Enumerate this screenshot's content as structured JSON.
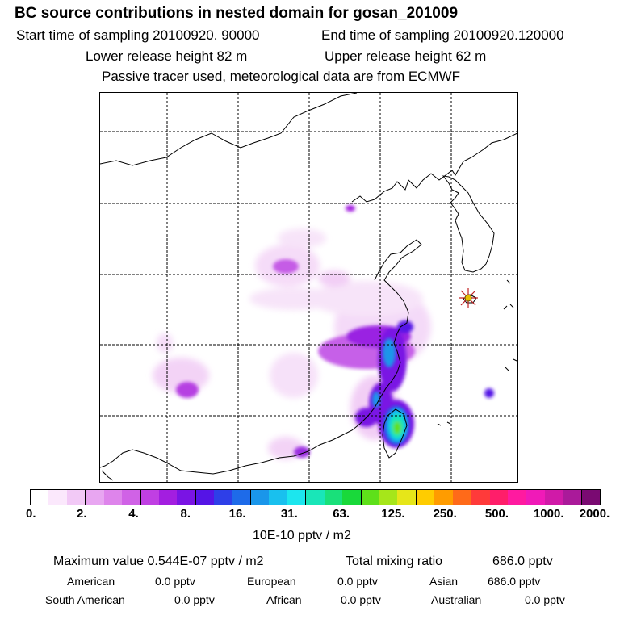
{
  "header": {
    "title": "BC  source contributions in nested domain for gosan_201009",
    "start_sampling": "Start time of sampling 20100920. 90000",
    "end_sampling": "End time of sampling 20100920.120000",
    "lower_release": "Lower release height   82 m",
    "upper_release": "Upper release height   62 m",
    "tracer_note": "Passive tracer used, meteorological data are from ECMWF"
  },
  "map": {
    "receptor_icon": "star-marker-icon"
  },
  "colorbar": {
    "colors": [
      "#ffffff",
      "#fbe8fc",
      "#f2c9f6",
      "#e8a6f1",
      "#de84eb",
      "#d062e6",
      "#c03fe3",
      "#a31ee0",
      "#7a14e4",
      "#5514e6",
      "#2e3fe8",
      "#1e6be9",
      "#1a96ea",
      "#19c0ee",
      "#1ce6ee",
      "#19e6b8",
      "#19e07a",
      "#19d93a",
      "#5ee01a",
      "#a6e61a",
      "#e6e619",
      "#ffcc00",
      "#ff9c00",
      "#ff6a19",
      "#ff3a3a",
      "#ff1e6a",
      "#ff1aa0",
      "#f01ab8",
      "#d01aa8",
      "#aa1a9a",
      "#7a0a72"
    ],
    "labels": [
      "0.",
      "2.",
      "4.",
      "8.",
      "16.",
      "31.",
      "63.",
      "125.",
      "250.",
      "500.",
      "1000.",
      "2000."
    ],
    "unit": "10E-10 pptv / m2"
  },
  "stats": {
    "max_label": "Maximum value  0.544E-07 pptv / m2",
    "total_label": "Total mixing ratio",
    "total_value": "686.0 pptv",
    "american_label": "American",
    "american_value": "0.0 pptv",
    "european_label": "European",
    "european_value": "0.0 pptv",
    "asian_label": "Asian",
    "asian_value": "686.0 pptv",
    "south_american_label": "South American",
    "south_american_value": "0.0 pptv",
    "african_label": "African",
    "african_value": "0.0 pptv",
    "australian_label": "Australian",
    "australian_value": "0.0 pptv"
  }
}
